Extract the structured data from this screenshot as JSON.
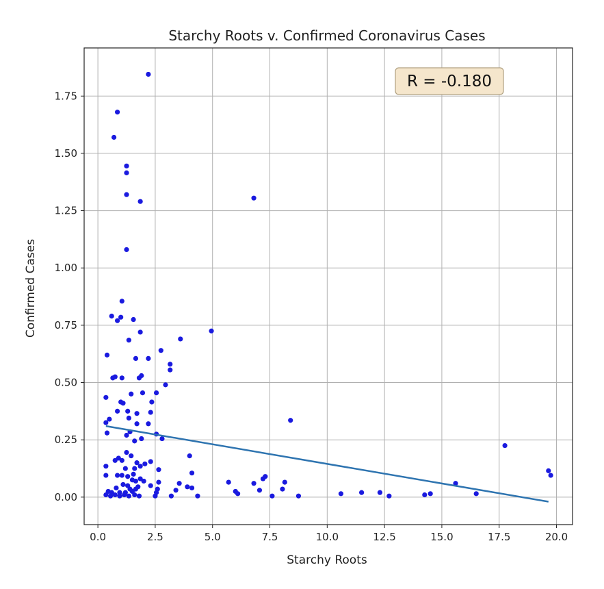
{
  "chart_data": {
    "type": "scatter",
    "title": "Starchy Roots v. Confirmed Coronavirus Cases",
    "xlabel": "Starchy Roots",
    "ylabel": "Confirmed Cases",
    "xlim": [
      -0.6,
      20.7
    ],
    "ylim": [
      -0.12,
      1.96
    ],
    "xticks": [
      0.0,
      2.5,
      5.0,
      7.5,
      10.0,
      12.5,
      15.0,
      17.5,
      20.0
    ],
    "xtick_labels": [
      "0.0",
      "2.5",
      "5.0",
      "7.5",
      "10.0",
      "12.5",
      "15.0",
      "17.5",
      "20.0"
    ],
    "yticks": [
      0.0,
      0.25,
      0.5,
      0.75,
      1.0,
      1.25,
      1.5,
      1.75
    ],
    "ytick_labels": [
      "0.00",
      "0.25",
      "0.50",
      "0.75",
      "1.00",
      "1.25",
      "1.50",
      "1.75"
    ],
    "grid": true,
    "annotation": "R = -0.180",
    "colors": {
      "points": "#1a1adf",
      "fit_line": "#2e74b0",
      "grid": "#b0b0b0",
      "annotation_bg": "#f5e6cc",
      "annotation_border": "#b0a080"
    },
    "fit_line": {
      "x": [
        0.35,
        19.65
      ],
      "y": [
        0.31,
        -0.02
      ]
    },
    "series": [
      {
        "points": [
          [
            2.2,
            1.845
          ],
          [
            0.85,
            1.68
          ],
          [
            0.7,
            1.57
          ],
          [
            1.25,
            1.445
          ],
          [
            1.25,
            1.415
          ],
          [
            1.25,
            1.32
          ],
          [
            1.85,
            1.29
          ],
          [
            6.8,
            1.305
          ],
          [
            1.25,
            1.08
          ],
          [
            1.05,
            0.855
          ],
          [
            0.6,
            0.79
          ],
          [
            0.85,
            0.77
          ],
          [
            1.0,
            0.785
          ],
          [
            1.55,
            0.775
          ],
          [
            1.85,
            0.72
          ],
          [
            3.6,
            0.69
          ],
          [
            1.35,
            0.685
          ],
          [
            4.95,
            0.725
          ],
          [
            0.4,
            0.62
          ],
          [
            2.75,
            0.64
          ],
          [
            1.65,
            0.605
          ],
          [
            2.2,
            0.605
          ],
          [
            3.15,
            0.58
          ],
          [
            3.15,
            0.555
          ],
          [
            0.65,
            0.52
          ],
          [
            1.05,
            0.52
          ],
          [
            1.8,
            0.52
          ],
          [
            1.9,
            0.53
          ],
          [
            0.75,
            0.525
          ],
          [
            2.95,
            0.49
          ],
          [
            1.45,
            0.45
          ],
          [
            1.95,
            0.455
          ],
          [
            2.55,
            0.455
          ],
          [
            0.35,
            0.435
          ],
          [
            1.0,
            0.415
          ],
          [
            1.1,
            0.41
          ],
          [
            2.35,
            0.415
          ],
          [
            8.4,
            0.335
          ],
          [
            1.3,
            0.375
          ],
          [
            0.85,
            0.375
          ],
          [
            1.7,
            0.365
          ],
          [
            2.3,
            0.37
          ],
          [
            0.35,
            0.325
          ],
          [
            0.5,
            0.34
          ],
          [
            1.35,
            0.345
          ],
          [
            1.7,
            0.32
          ],
          [
            2.2,
            0.32
          ],
          [
            0.4,
            0.28
          ],
          [
            1.25,
            0.27
          ],
          [
            1.4,
            0.285
          ],
          [
            2.55,
            0.275
          ],
          [
            2.8,
            0.255
          ],
          [
            1.6,
            0.245
          ],
          [
            1.9,
            0.255
          ],
          [
            1.25,
            0.195
          ],
          [
            1.45,
            0.18
          ],
          [
            0.9,
            0.17
          ],
          [
            1.05,
            0.16
          ],
          [
            0.75,
            0.16
          ],
          [
            1.7,
            0.15
          ],
          [
            2.05,
            0.145
          ],
          [
            1.85,
            0.135
          ],
          [
            2.3,
            0.155
          ],
          [
            0.35,
            0.135
          ],
          [
            1.2,
            0.125
          ],
          [
            1.6,
            0.125
          ],
          [
            2.65,
            0.12
          ],
          [
            4.0,
            0.18
          ],
          [
            0.35,
            0.095
          ],
          [
            0.85,
            0.095
          ],
          [
            1.05,
            0.095
          ],
          [
            1.3,
            0.09
          ],
          [
            1.55,
            0.1
          ],
          [
            4.1,
            0.105
          ],
          [
            7.3,
            0.09
          ],
          [
            7.2,
            0.08
          ],
          [
            1.5,
            0.075
          ],
          [
            1.65,
            0.07
          ],
          [
            1.85,
            0.08
          ],
          [
            2.0,
            0.07
          ],
          [
            2.65,
            0.065
          ],
          [
            3.55,
            0.06
          ],
          [
            5.7,
            0.065
          ],
          [
            8.15,
            0.065
          ],
          [
            15.6,
            0.06
          ],
          [
            6.8,
            0.06
          ],
          [
            1.1,
            0.055
          ],
          [
            1.3,
            0.05
          ],
          [
            1.75,
            0.045
          ],
          [
            2.3,
            0.05
          ],
          [
            3.9,
            0.045
          ],
          [
            4.1,
            0.04
          ],
          [
            0.8,
            0.04
          ],
          [
            1.4,
            0.035
          ],
          [
            1.65,
            0.035
          ],
          [
            2.6,
            0.035
          ],
          [
            3.4,
            0.03
          ],
          [
            6.0,
            0.025
          ],
          [
            8.05,
            0.035
          ],
          [
            7.05,
            0.03
          ],
          [
            0.45,
            0.025
          ],
          [
            0.6,
            0.02
          ],
          [
            0.95,
            0.02
          ],
          [
            1.2,
            0.02
          ],
          [
            1.5,
            0.025
          ],
          [
            2.55,
            0.02
          ],
          [
            6.1,
            0.015
          ],
          [
            10.6,
            0.015
          ],
          [
            11.5,
            0.02
          ],
          [
            12.3,
            0.02
          ],
          [
            14.5,
            0.015
          ],
          [
            16.5,
            0.015
          ],
          [
            0.35,
            0.01
          ],
          [
            0.55,
            0.005
          ],
          [
            0.75,
            0.01
          ],
          [
            0.95,
            0.005
          ],
          [
            1.15,
            0.01
          ],
          [
            1.35,
            0.005
          ],
          [
            1.6,
            0.01
          ],
          [
            1.8,
            0.005
          ],
          [
            2.5,
            0.005
          ],
          [
            3.2,
            0.005
          ],
          [
            4.35,
            0.005
          ],
          [
            7.6,
            0.005
          ],
          [
            8.75,
            0.005
          ],
          [
            12.7,
            0.005
          ],
          [
            14.25,
            0.01
          ],
          [
            17.75,
            0.225
          ],
          [
            19.65,
            0.115
          ],
          [
            19.75,
            0.095
          ]
        ]
      }
    ]
  }
}
